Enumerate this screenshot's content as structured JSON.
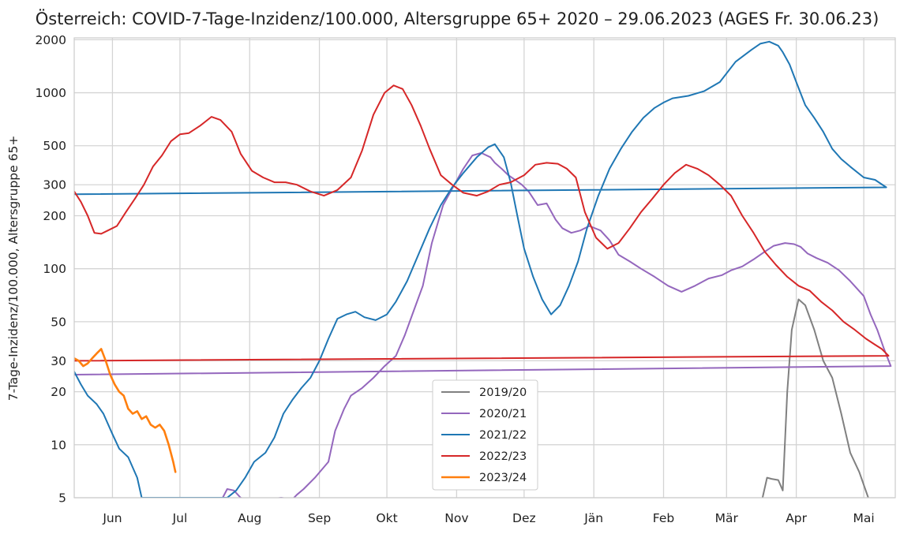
{
  "chart_data": {
    "type": "line",
    "title": "Österreich: COVID-7-Tage-Inzidenz/100.000, Altersgruppe 65+ 2020 – 29.06.2023 (AGES Fr. 30.06.23)",
    "xlabel": "",
    "ylabel": "7-Tage-Inzidenz/100.000, Altersgruppe 65+",
    "y_scale": "log",
    "ylim": [
      5,
      2050
    ],
    "xlim": [
      "05-15",
      "05-15"
    ],
    "x_ticks": [
      {
        "label": "Jun",
        "date": "06-01"
      },
      {
        "label": "Jul",
        "date": "07-01"
      },
      {
        "label": "Aug",
        "date": "08-01"
      },
      {
        "label": "Sep",
        "date": "09-01"
      },
      {
        "label": "Okt",
        "date": "10-01"
      },
      {
        "label": "Nov",
        "date": "11-01"
      },
      {
        "label": "Dez",
        "date": "12-01"
      },
      {
        "label": "Jän",
        "date": "01-01"
      },
      {
        "label": "Feb",
        "date": "02-01"
      },
      {
        "label": "Mär",
        "date": "03-01"
      },
      {
        "label": "Apr",
        "date": "04-01"
      },
      {
        "label": "Mai",
        "date": "05-01"
      }
    ],
    "y_ticks": [
      5,
      10,
      20,
      30,
      50,
      100,
      200,
      300,
      500,
      1000,
      2000
    ],
    "grid": true,
    "legend_position": "bottom-center",
    "series": [
      {
        "name": "2019/20",
        "color": "#808080",
        "x": [
          "03-17",
          "03-19",
          "03-21",
          "03-24",
          "03-26",
          "03-28",
          "03-30",
          "04-02",
          "04-05",
          "04-09",
          "04-13",
          "04-17",
          "04-21",
          "04-25",
          "04-29",
          "05-03"
        ],
        "y": [
          5,
          6.5,
          6.4,
          6.3,
          5.5,
          20,
          45,
          67,
          62,
          45,
          30,
          24,
          15,
          9,
          7,
          5
        ]
      },
      {
        "name": "2020/21",
        "color": "#9467bd",
        "x": [
          "07-20",
          "07-22",
          "07-25",
          "07-28",
          "08-01",
          "08-10",
          "08-15",
          "08-20",
          "08-22",
          "08-25",
          "08-30",
          "09-05",
          "09-08",
          "09-12",
          "09-15",
          "09-20",
          "09-25",
          "09-30",
          "10-05",
          "10-09",
          "10-13",
          "10-17",
          "10-21",
          "10-26",
          "10-31",
          "11-04",
          "11-08",
          "11-12",
          "11-16",
          "11-18",
          "11-21",
          "11-24",
          "11-27",
          "11-30",
          "12-03",
          "12-07",
          "12-11",
          "12-15",
          "12-18",
          "12-22",
          "12-26",
          "12-30",
          "01-04",
          "01-08",
          "01-12",
          "01-17",
          "01-22",
          "01-28",
          "02-03",
          "02-09",
          "02-15",
          "02-21",
          "02-27",
          "03-03",
          "03-08",
          "03-13",
          "03-18",
          "03-22",
          "03-27",
          "03-31",
          "04-03",
          "04-06",
          "04-10",
          "04-15",
          "04-20",
          "04-25",
          "05-01",
          "05-04",
          "05-07",
          "05-10",
          "05-13",
          "05-15"
        ],
        "y": [
          5,
          5.6,
          5.5,
          5,
          4.8,
          4.9,
          5,
          4.9,
          5.2,
          5.6,
          6.5,
          8,
          12,
          16,
          19,
          21,
          24,
          28,
          32,
          42,
          58,
          80,
          140,
          230,
          300,
          370,
          440,
          455,
          430,
          400,
          370,
          340,
          320,
          300,
          275,
          230,
          235,
          190,
          170,
          160,
          165,
          175,
          165,
          145,
          120,
          110,
          100,
          90,
          80,
          74,
          80,
          88,
          92,
          98,
          103,
          113,
          125,
          135,
          140,
          138,
          133,
          122,
          115,
          108,
          98,
          85,
          70,
          55,
          45,
          35,
          28,
          25
        ]
      },
      {
        "name": "2021/22",
        "color": "#1f77b4",
        "x": [
          "05-15",
          "05-18",
          "05-21",
          "05-25",
          "05-28",
          "06-01",
          "06-04",
          "06-08",
          "06-12",
          "06-14",
          "07-22",
          "07-26",
          "07-30",
          "08-03",
          "08-08",
          "08-12",
          "08-16",
          "08-20",
          "08-24",
          "08-28",
          "09-01",
          "09-05",
          "09-09",
          "09-13",
          "09-17",
          "09-21",
          "09-26",
          "10-01",
          "10-05",
          "10-10",
          "10-15",
          "10-20",
          "10-25",
          "10-30",
          "11-04",
          "11-10",
          "11-15",
          "11-18",
          "11-22",
          "11-25",
          "11-28",
          "12-01",
          "12-05",
          "12-09",
          "12-13",
          "12-17",
          "12-21",
          "12-25",
          "12-29",
          "01-03",
          "01-08",
          "01-13",
          "01-18",
          "01-23",
          "01-28",
          "02-01",
          "02-05",
          "02-12",
          "02-19",
          "02-26",
          "03-05",
          "03-12",
          "03-16",
          "03-20",
          "03-24",
          "03-26",
          "03-29",
          "04-01",
          "04-05",
          "04-09",
          "04-13",
          "04-17",
          "04-21",
          "04-25",
          "05-01",
          "05-06",
          "05-11",
          "05-15"
        ],
        "y": [
          26,
          22,
          19,
          17,
          15,
          11.5,
          9.5,
          8.5,
          6.5,
          5,
          5,
          5.5,
          6.5,
          8,
          9,
          11,
          15,
          18,
          21,
          24,
          30,
          40,
          52,
          55,
          57,
          53,
          51,
          55,
          65,
          85,
          120,
          170,
          230,
          290,
          350,
          430,
          490,
          510,
          430,
          310,
          200,
          130,
          90,
          67,
          55,
          62,
          80,
          110,
          170,
          260,
          370,
          480,
          600,
          720,
          820,
          880,
          930,
          960,
          1020,
          1150,
          1500,
          1750,
          1900,
          1950,
          1850,
          1700,
          1450,
          1150,
          850,
          720,
          600,
          480,
          420,
          380,
          330,
          320,
          290,
          265
        ]
      },
      {
        "name": "2022/23",
        "color": "#d62728",
        "x": [
          "05-15",
          "05-18",
          "05-21",
          "05-24",
          "05-27",
          "05-30",
          "06-03",
          "06-07",
          "06-11",
          "06-15",
          "06-19",
          "06-23",
          "06-27",
          "07-01",
          "07-05",
          "07-10",
          "07-15",
          "07-19",
          "07-24",
          "07-28",
          "08-02",
          "08-07",
          "08-12",
          "08-17",
          "08-22",
          "08-28",
          "09-03",
          "09-09",
          "09-15",
          "09-20",
          "09-25",
          "09-30",
          "10-04",
          "10-08",
          "10-12",
          "10-16",
          "10-20",
          "10-25",
          "10-30",
          "11-04",
          "11-10",
          "11-15",
          "11-20",
          "11-25",
          "12-01",
          "12-06",
          "12-11",
          "12-16",
          "12-20",
          "12-24",
          "12-28",
          "01-02",
          "01-07",
          "01-12",
          "01-17",
          "01-22",
          "01-27",
          "02-01",
          "02-06",
          "02-11",
          "02-16",
          "02-21",
          "02-26",
          "03-03",
          "03-08",
          "03-13",
          "03-18",
          "03-23",
          "03-28",
          "04-02",
          "04-07",
          "04-12",
          "04-17",
          "04-22",
          "04-27",
          "05-02",
          "05-06",
          "05-09",
          "05-12",
          "05-15"
        ],
        "y": [
          275,
          240,
          200,
          160,
          158,
          165,
          175,
          210,
          250,
          300,
          380,
          440,
          530,
          580,
          590,
          650,
          730,
          700,
          600,
          450,
          360,
          330,
          310,
          310,
          300,
          275,
          260,
          280,
          330,
          470,
          750,
          1000,
          1100,
          1050,
          850,
          650,
          480,
          340,
          300,
          270,
          260,
          275,
          300,
          310,
          340,
          390,
          400,
          395,
          370,
          330,
          210,
          150,
          130,
          140,
          170,
          210,
          250,
          300,
          350,
          390,
          370,
          340,
          300,
          260,
          200,
          160,
          125,
          105,
          90,
          80,
          75,
          65,
          58,
          50,
          45,
          40,
          37,
          35,
          32,
          30
        ]
      },
      {
        "name": "2023/24",
        "color": "#ff7f0e",
        "x": [
          "05-15",
          "05-17",
          "05-19",
          "05-21",
          "05-23",
          "05-25",
          "05-27",
          "05-29",
          "05-31",
          "06-02",
          "06-04",
          "06-06",
          "06-08",
          "06-10",
          "06-12",
          "06-14",
          "06-16",
          "06-18",
          "06-20",
          "06-22",
          "06-24",
          "06-26",
          "06-28",
          "06-29"
        ],
        "y": [
          31,
          30,
          28,
          29,
          31,
          33,
          35,
          30,
          25,
          22,
          20,
          19,
          16,
          15,
          15.5,
          14,
          14.5,
          13,
          12.5,
          13,
          12,
          10,
          8,
          7
        ]
      }
    ]
  }
}
